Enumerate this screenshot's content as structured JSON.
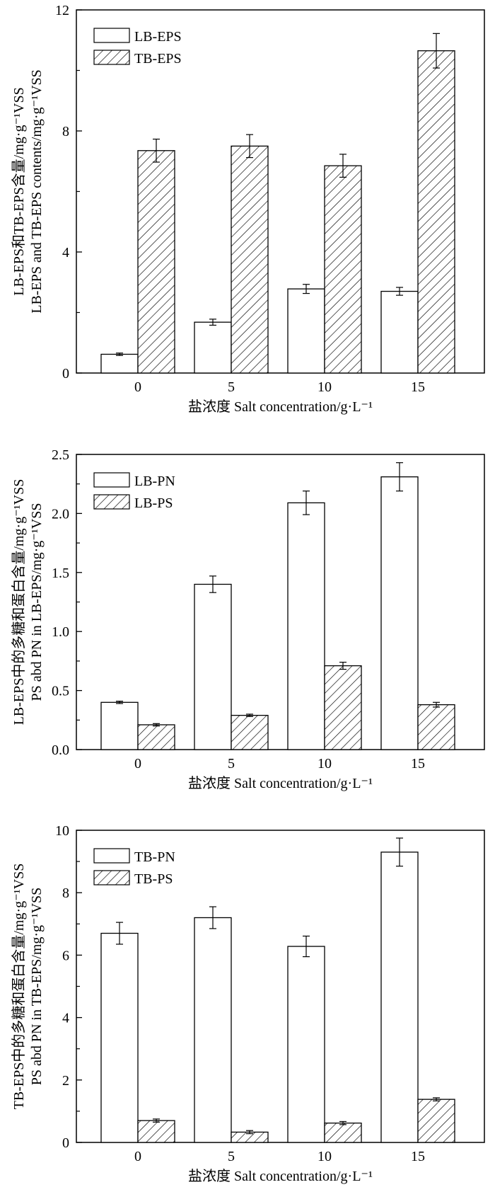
{
  "chart_data": [
    {
      "type": "bar",
      "categories": [
        "0",
        "5",
        "10",
        "15"
      ],
      "series": [
        {
          "name": "LB-EPS",
          "values": [
            0.62,
            1.68,
            2.78,
            2.7
          ],
          "errors": [
            0.04,
            0.1,
            0.15,
            0.13
          ],
          "pattern": "open"
        },
        {
          "name": "TB-EPS",
          "values": [
            7.35,
            7.5,
            6.85,
            10.65
          ],
          "errors": [
            0.38,
            0.38,
            0.38,
            0.57
          ],
          "pattern": "hatch"
        }
      ],
      "xlabel": "盐浓度 Salt concentration/g·L⁻¹",
      "ylabel_lines": [
        "LB-EPS和TB-EPS含量/mg·g⁻¹VSS",
        "LB-EPS and TB-EPS contents/mg·g⁻¹VSS"
      ],
      "ylim": [
        0,
        12
      ],
      "yticks": [
        "0",
        "4",
        "8",
        "12"
      ],
      "ytick_values": [
        0,
        4,
        8,
        12
      ],
      "legend_position": "top-left"
    },
    {
      "type": "bar",
      "categories": [
        "0",
        "5",
        "10",
        "15"
      ],
      "series": [
        {
          "name": "LB-PN",
          "values": [
            0.4,
            1.4,
            2.09,
            2.31
          ],
          "errors": [
            0.01,
            0.07,
            0.1,
            0.12
          ],
          "pattern": "open"
        },
        {
          "name": "LB-PS",
          "values": [
            0.21,
            0.29,
            0.71,
            0.38
          ],
          "errors": [
            0.01,
            0.01,
            0.03,
            0.02
          ],
          "pattern": "hatch"
        }
      ],
      "xlabel": "盐浓度 Salt concentration/g·L⁻¹",
      "ylabel_lines": [
        "LB-EPS中的多糖和蛋白含量/mg·g⁻¹VSS",
        "PS abd PN in LB-EPS/mg·g⁻¹VSS"
      ],
      "ylim": [
        0,
        2.5
      ],
      "yticks": [
        "0.0",
        "0.5",
        "1.0",
        "1.5",
        "2.0",
        "2.5"
      ],
      "ytick_values": [
        0,
        0.5,
        1.0,
        1.5,
        2.0,
        2.5
      ],
      "legend_position": "top-left"
    },
    {
      "type": "bar",
      "categories": [
        "0",
        "5",
        "10",
        "15"
      ],
      "series": [
        {
          "name": "TB-PN",
          "values": [
            6.7,
            7.2,
            6.28,
            9.3
          ],
          "errors": [
            0.35,
            0.35,
            0.33,
            0.45
          ],
          "pattern": "open"
        },
        {
          "name": "TB-PS",
          "values": [
            0.7,
            0.33,
            0.62,
            1.38
          ],
          "errors": [
            0.05,
            0.05,
            0.05,
            0.05
          ],
          "pattern": "hatch"
        }
      ],
      "xlabel": "盐浓度 Salt concentration/g·L⁻¹",
      "ylabel_lines": [
        "TB-EPS中的多糖和蛋白含量/mg·g⁻¹VSS",
        "PS abd PN in TB-EPS/mg·g⁻¹VSS"
      ],
      "ylim": [
        0,
        10
      ],
      "yticks": [
        "0",
        "2",
        "4",
        "6",
        "8",
        "10"
      ],
      "ytick_values": [
        0,
        2,
        4,
        6,
        8,
        10
      ],
      "legend_position": "top-left"
    }
  ]
}
